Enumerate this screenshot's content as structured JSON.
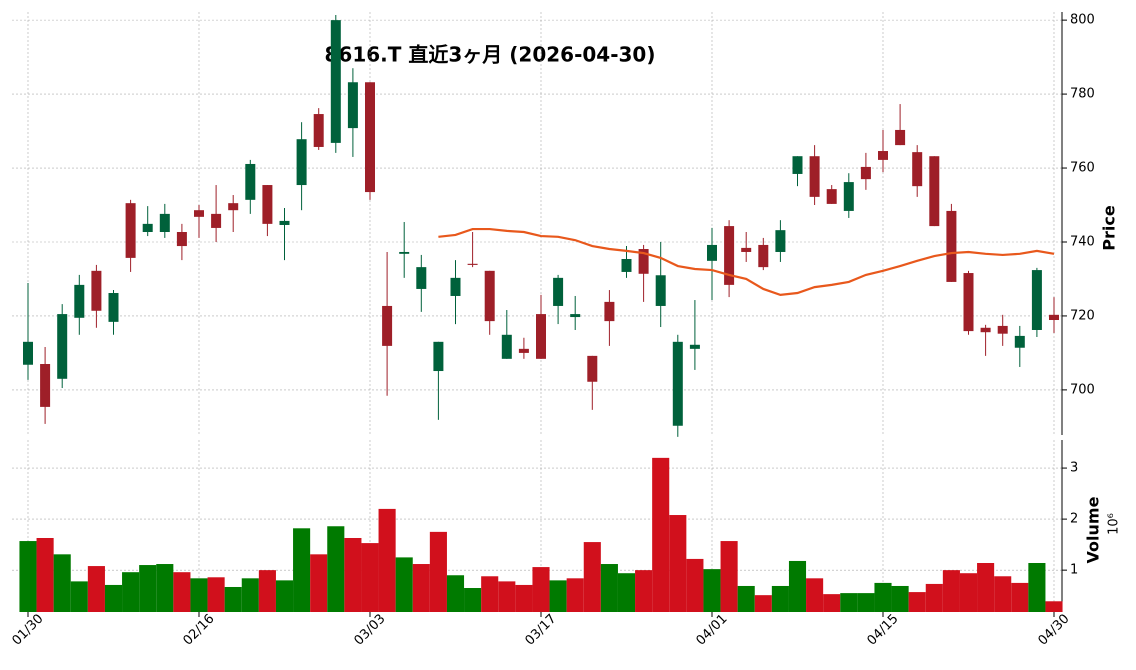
{
  "chart_data": [
    {
      "type": "candlestick",
      "title": "8616.T  直近3ヶ月  (2026-04-30)",
      "ylabel": "Price",
      "up_color": "#00613b",
      "down_color": "#9e1f28",
      "ylim": [
        687.8,
        802.2
      ],
      "yticks": [
        700,
        720,
        740,
        760,
        780,
        800
      ],
      "grid": true,
      "open": [
        706.8,
        707.0,
        703.0,
        719.5,
        732.2,
        718.4,
        750.5,
        742.7,
        742.7,
        742.7,
        748.6,
        747.6,
        750.5,
        751.4,
        755.4,
        744.6,
        755.4,
        774.6,
        766.8,
        770.8,
        783.2,
        722.7,
        736.8,
        727.3,
        705.1,
        725.4,
        734.1,
        732.2,
        708.4,
        711.1,
        720.5,
        722.7,
        719.7,
        709.2,
        723.8,
        731.9,
        738.1,
        722.7,
        690.3,
        711.1,
        734.9,
        744.3,
        738.4,
        739.2,
        737.3,
        758.4,
        763.2,
        754.3,
        748.4,
        760.3,
        764.6,
        770.3,
        764.3,
        763.2,
        748.4,
        731.6,
        716.8,
        717.3,
        711.4,
        716.2,
        720.3
      ],
      "high": [
        728.9,
        711.6,
        723.2,
        731.1,
        733.8,
        727.0,
        751.4,
        749.7,
        750.3,
        744.9,
        750.0,
        755.4,
        752.7,
        762.2,
        755.4,
        749.2,
        772.4,
        776.2,
        801.4,
        787.0,
        783.2,
        737.3,
        745.4,
        736.5,
        713.0,
        735.1,
        742.7,
        732.2,
        721.6,
        714.1,
        725.7,
        731.1,
        725.4,
        709.2,
        727.0,
        738.9,
        739.2,
        740.0,
        714.9,
        724.3,
        743.8,
        745.9,
        742.7,
        741.1,
        745.9,
        763.2,
        766.2,
        755.4,
        758.6,
        764.1,
        770.3,
        777.3,
        766.2,
        763.2,
        750.3,
        732.2,
        717.6,
        720.3,
        717.3,
        733.0,
        725.1
      ],
      "low": [
        702.7,
        690.8,
        700.5,
        714.9,
        716.8,
        714.9,
        731.9,
        741.6,
        741.1,
        735.1,
        741.1,
        740.0,
        742.7,
        747.6,
        741.6,
        735.1,
        748.6,
        764.9,
        764.1,
        763.0,
        751.4,
        698.4,
        730.3,
        721.1,
        691.9,
        717.8,
        733.2,
        714.9,
        708.4,
        708.4,
        708.4,
        717.8,
        716.2,
        694.6,
        711.9,
        730.3,
        723.8,
        717.0,
        687.3,
        705.4,
        724.3,
        725.1,
        734.6,
        732.4,
        734.6,
        755.1,
        750.0,
        750.3,
        746.5,
        754.1,
        758.9,
        766.2,
        752.2,
        744.3,
        729.2,
        714.9,
        709.2,
        711.9,
        706.2,
        714.3,
        715.4
      ],
      "close": [
        713.0,
        695.4,
        720.5,
        728.4,
        721.4,
        726.2,
        735.7,
        744.9,
        747.6,
        738.9,
        746.8,
        743.8,
        748.6,
        761.1,
        744.9,
        745.7,
        767.8,
        765.7,
        800.0,
        783.2,
        753.5,
        711.9,
        737.3,
        733.2,
        713.0,
        730.3,
        733.8,
        718.6,
        714.9,
        710.0,
        708.4,
        730.3,
        720.5,
        702.2,
        718.6,
        735.4,
        731.4,
        731.0,
        713.0,
        712.2,
        739.2,
        728.4,
        737.3,
        733.2,
        743.2,
        763.2,
        752.2,
        750.3,
        756.2,
        757.0,
        762.2,
        766.2,
        755.1,
        744.3,
        729.2,
        715.9,
        715.6,
        715.2,
        714.6,
        732.4,
        718.9
      ],
      "moving_average": {
        "color": "#e8581c",
        "values": [
          null,
          null,
          null,
          null,
          null,
          null,
          null,
          null,
          null,
          null,
          null,
          null,
          null,
          null,
          null,
          null,
          null,
          null,
          null,
          null,
          null,
          null,
          null,
          null,
          741.4,
          741.9,
          743.5,
          743.5,
          743.0,
          742.7,
          741.6,
          741.4,
          740.5,
          738.9,
          738.1,
          737.6,
          737.0,
          735.7,
          733.5,
          732.7,
          732.4,
          731.1,
          730.0,
          727.3,
          725.7,
          726.2,
          727.8,
          728.4,
          729.2,
          731.1,
          732.2,
          733.5,
          734.9,
          736.2,
          737.0,
          737.3,
          736.8,
          736.5,
          736.8,
          737.6,
          736.8
        ]
      }
    },
    {
      "type": "bar",
      "ylabel": "Volume",
      "offset_label": "10⁶",
      "up_color": "#007a00",
      "down_color": "#d1101c",
      "ylim": [
        0.18,
        3.55
      ],
      "yticks": [
        1,
        2,
        3
      ],
      "grid": true,
      "categories": [
        "01/30",
        null,
        null,
        null,
        null,
        null,
        null,
        null,
        null,
        null,
        "02/16",
        null,
        null,
        null,
        null,
        null,
        null,
        null,
        null,
        null,
        "03/03",
        null,
        null,
        null,
        null,
        null,
        null,
        null,
        null,
        null,
        "03/17",
        null,
        null,
        null,
        null,
        null,
        null,
        null,
        null,
        null,
        "04/01",
        null,
        null,
        null,
        null,
        null,
        null,
        null,
        null,
        null,
        "04/15",
        null,
        null,
        null,
        null,
        null,
        null,
        null,
        null,
        null,
        "04/30"
      ],
      "values": [
        1.57,
        1.63,
        1.31,
        0.78,
        1.08,
        0.71,
        0.96,
        1.1,
        1.12,
        0.96,
        0.84,
        0.86,
        0.67,
        0.84,
        1.0,
        0.8,
        1.82,
        1.31,
        1.86,
        1.63,
        1.53,
        2.2,
        1.25,
        1.12,
        1.75,
        0.9,
        0.65,
        0.88,
        0.78,
        0.71,
        1.06,
        0.8,
        0.84,
        1.55,
        1.12,
        0.94,
        1.0,
        3.2,
        2.08,
        1.22,
        1.02,
        1.57,
        0.69,
        0.51,
        0.69,
        1.18,
        0.84,
        0.53,
        0.55,
        0.55,
        0.75,
        0.69,
        0.57,
        0.73,
        1.0,
        0.94,
        1.14,
        0.88,
        0.75,
        1.14,
        0.39
      ]
    }
  ]
}
